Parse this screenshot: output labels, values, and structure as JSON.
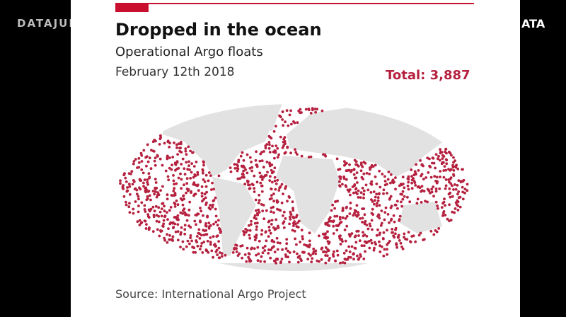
{
  "watermark": "DATAJURIS",
  "logo": "ATA",
  "header": {
    "title": "Dropped in the ocean",
    "subtitle": "Operational Argo floats",
    "date": "February 12th 2018",
    "total": "Total: 3,887"
  },
  "footer": {
    "source": "Source: International Argo Project"
  }
}
